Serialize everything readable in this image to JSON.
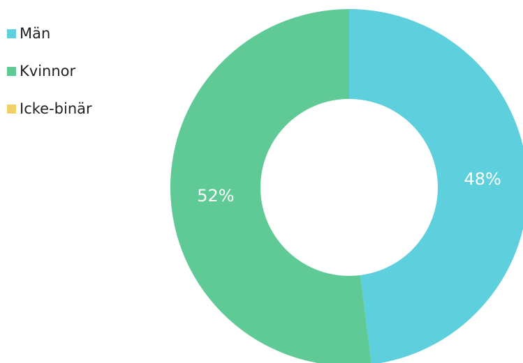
{
  "chart_data": {
    "type": "pie",
    "style": "donut",
    "title": "",
    "legend_position": "top-left",
    "slices": [
      {
        "name": "Män",
        "value": 48,
        "label": "48%",
        "color": "#5ecfdc"
      },
      {
        "name": "Kvinnor",
        "value": 52,
        "label": "52%",
        "color": "#5fca95"
      },
      {
        "name": "Icke-binär",
        "value": 0,
        "label": "",
        "color": "#f0d067"
      }
    ]
  }
}
